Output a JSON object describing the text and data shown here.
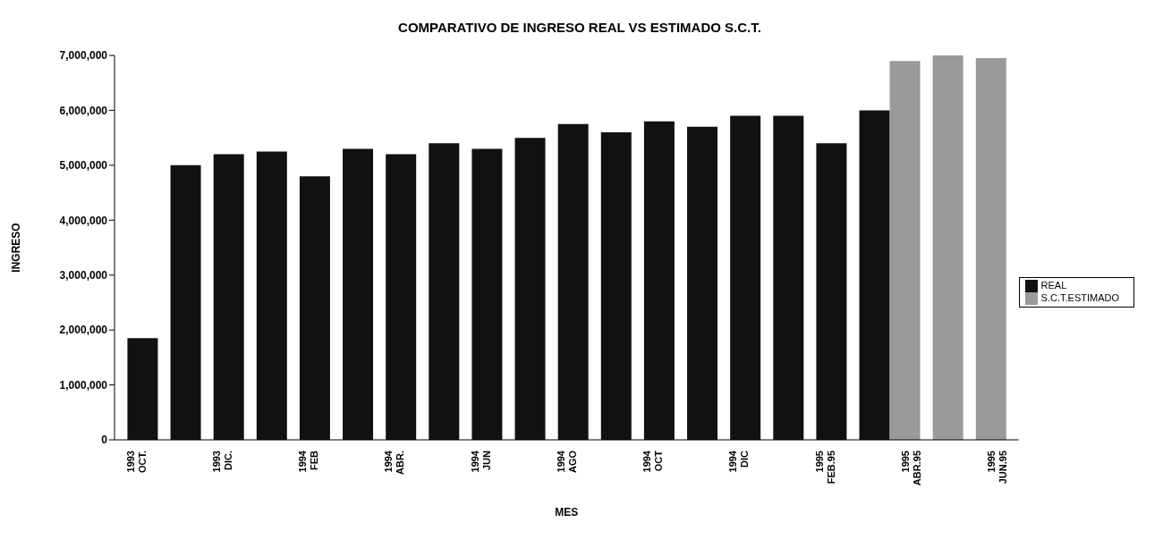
{
  "chart_data": {
    "type": "bar",
    "title": "COMPARATIVO DE INGRESO REAL VS ESTIMADO S.C.T.",
    "xlabel": "MES",
    "ylabel": "INGRESO",
    "categories": [
      "1993 OCT.",
      null,
      "1993 DIC.",
      null,
      "1994 FEB",
      null,
      "1994 ABR.",
      null,
      "1994 JUN",
      null,
      "1994 AGO",
      null,
      "1994 OCT",
      null,
      "1994 DIC",
      null,
      "1995 FEB.95",
      null,
      "1995 ABR.95",
      null,
      "1995 JUN.95"
    ],
    "series": [
      {
        "name": "REAL",
        "color": "#111111",
        "values": [
          1850000,
          5000000,
          5200000,
          5250000,
          4800000,
          5300000,
          5200000,
          5400000,
          5300000,
          5500000,
          5750000,
          5600000,
          5800000,
          5700000,
          5900000,
          5900000,
          5400000,
          6000000,
          null,
          null,
          null
        ]
      },
      {
        "name": "S.C.T.ESTIMADO",
        "color": "#9a9a9a",
        "values": [
          null,
          null,
          null,
          null,
          null,
          null,
          null,
          null,
          null,
          null,
          null,
          null,
          null,
          null,
          null,
          null,
          null,
          null,
          6900000,
          7000000,
          6950000
        ]
      }
    ],
    "ylim": [
      0,
      7000000
    ],
    "yticks": [
      0,
      {
        "value": 1000000,
        "label": "1,000,000"
      },
      {
        "value": 2000000,
        "label": "2,000,000"
      },
      {
        "value": 3000000,
        "label": "3,000,000"
      },
      {
        "value": 4000000,
        "label": "4,000,000"
      },
      {
        "value": 5000000,
        "label": "5,000,000"
      },
      {
        "value": 6000000,
        "label": "6,000,000"
      },
      {
        "value": 7000000,
        "label": "7,000,000"
      }
    ],
    "legend": "right"
  }
}
